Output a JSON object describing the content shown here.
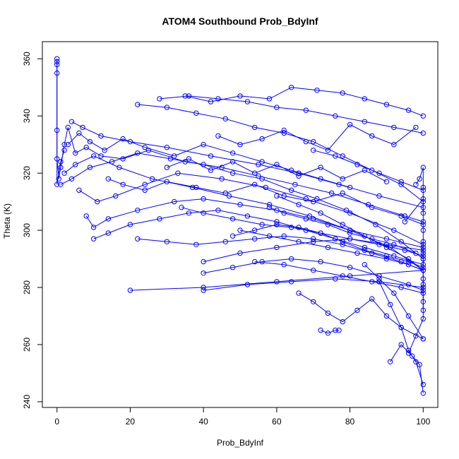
{
  "chart_data": {
    "type": "line",
    "title": "ATOM4 Southbound Prob_BdyInf",
    "xlabel": "Prob_BdyInf",
    "ylabel": "Theta (K)",
    "xlim": [
      -4,
      104
    ],
    "ylim": [
      238,
      366
    ],
    "xticks": [
      0,
      20,
      40,
      60,
      80,
      100
    ],
    "yticks": [
      240,
      260,
      280,
      300,
      320,
      340,
      360
    ],
    "grid": false,
    "legend": "none",
    "color": "#0000ff",
    "marker": "open-circle",
    "series": [
      {
        "x": [
          0,
          0,
          0,
          0,
          0.5,
          1,
          2,
          3,
          5,
          8,
          12,
          18,
          25,
          35,
          45,
          55,
          65,
          75,
          85,
          95,
          100
        ],
        "y": [
          359,
          355,
          335,
          325,
          318,
          322,
          330,
          336,
          327,
          329,
          326,
          325,
          328,
          324,
          322,
          319,
          316,
          313,
          309,
          305,
          303
        ]
      },
      {
        "x": [
          1,
          4,
          9,
          15,
          22,
          31,
          40,
          48,
          56,
          64,
          71,
          79,
          87,
          94,
          100
        ],
        "y": [
          316,
          318,
          322,
          324,
          327,
          325,
          323,
          320,
          318,
          314,
          311,
          307,
          302,
          296,
          290
        ]
      },
      {
        "x": [
          2,
          5,
          10,
          17,
          26,
          37,
          47,
          58,
          69,
          80,
          91,
          100
        ],
        "y": [
          320,
          323,
          326,
          322,
          318,
          315,
          312,
          309,
          305,
          300,
          294,
          286
        ]
      },
      {
        "x": [
          22,
          30,
          38,
          46,
          54,
          62,
          70,
          78,
          86,
          94,
          100
        ],
        "y": [
          344,
          343,
          341,
          339,
          336,
          334,
          331,
          326,
          321,
          316,
          310
        ]
      },
      {
        "x": [
          28,
          36,
          44,
          52,
          60,
          68,
          76,
          84,
          92,
          100
        ],
        "y": [
          346,
          347,
          346,
          345,
          343,
          342,
          340,
          338,
          336,
          334
        ]
      },
      {
        "x": [
          35,
          42,
          50,
          58,
          64,
          71,
          78,
          84,
          90,
          96,
          100
        ],
        "y": [
          347,
          345,
          347,
          346,
          350,
          349,
          348,
          346,
          344,
          342,
          340
        ]
      },
      {
        "x": [
          4,
          7,
          12,
          20,
          30,
          42,
          55,
          66,
          77,
          88,
          100
        ],
        "y": [
          338,
          336,
          333,
          331,
          329,
          326,
          323,
          320,
          316,
          312,
          308
        ]
      },
      {
        "x": [
          6,
          11,
          16,
          24,
          33,
          45,
          57,
          68,
          80,
          92,
          100
        ],
        "y": [
          314,
          310,
          312,
          316,
          320,
          318,
          315,
          311,
          306,
          300,
          295
        ]
      },
      {
        "x": [
          20,
          40,
          60,
          80,
          100
        ],
        "y": [
          279,
          280,
          282,
          284,
          286
        ]
      },
      {
        "x": [
          40,
          48,
          56,
          64,
          72,
          80,
          88,
          96,
          100
        ],
        "y": [
          285,
          287,
          289,
          290,
          289,
          287,
          284,
          281,
          279
        ]
      },
      {
        "x": [
          40,
          50,
          60,
          70,
          80,
          90,
          100
        ],
        "y": [
          289,
          292,
          294,
          296,
          297,
          295,
          293
        ]
      },
      {
        "x": [
          40,
          52,
          64,
          76,
          88,
          100
        ],
        "y": [
          279,
          281,
          282,
          283,
          282,
          280
        ]
      },
      {
        "x": [
          22,
          30,
          38,
          46,
          54,
          62,
          70,
          78,
          86,
          94,
          100
        ],
        "y": [
          297,
          296,
          295,
          296,
          297,
          298,
          297,
          295,
          292,
          289,
          286
        ]
      },
      {
        "x": [
          10,
          14,
          20,
          28,
          36,
          44,
          52,
          60,
          68,
          76,
          84,
          92,
          100
        ],
        "y": [
          297,
          299,
          302,
          304,
          306,
          307,
          305,
          303,
          300,
          297,
          294,
          291,
          288
        ]
      },
      {
        "x": [
          8,
          10,
          14,
          22,
          32,
          40,
          50,
          60,
          70,
          80,
          90,
          100
        ],
        "y": [
          305,
          301,
          304,
          307,
          310,
          311,
          309,
          307,
          304,
          300,
          297,
          294
        ]
      },
      {
        "x": [
          34,
          40,
          48,
          56,
          64,
          72,
          80,
          88,
          95,
          100
        ],
        "y": [
          308,
          306,
          304,
          302,
          301,
          299,
          297,
          295,
          293,
          291
        ]
      },
      {
        "x": [
          50,
          58,
          66,
          74,
          82,
          90,
          96,
          100
        ],
        "y": [
          300,
          298,
          296,
          294,
          292,
          290,
          288,
          286
        ]
      },
      {
        "x": [
          54,
          62,
          70,
          78,
          86,
          94,
          100
        ],
        "y": [
          289,
          288,
          286,
          284,
          282,
          280,
          278
        ]
      },
      {
        "x": [
          60,
          66,
          72,
          78,
          84,
          90,
          96,
          100
        ],
        "y": [
          312,
          309,
          306,
          302,
          298,
          294,
          290,
          286
        ]
      },
      {
        "x": [
          66,
          70,
          74,
          78,
          82,
          86,
          90,
          94,
          100
        ],
        "y": [
          278,
          275,
          271,
          268,
          272,
          276,
          270,
          266,
          262
        ]
      },
      {
        "x": [
          72,
          74,
          76,
          77
        ],
        "y": [
          265,
          264,
          265,
          265
        ]
      },
      {
        "x": [
          84,
          88,
          92,
          96,
          100
        ],
        "y": [
          288,
          283,
          278,
          270,
          262
        ]
      },
      {
        "x": [
          88,
          91,
          94,
          96,
          98,
          100
        ],
        "y": [
          282,
          274,
          266,
          258,
          254,
          246
        ]
      },
      {
        "x": [
          91,
          94,
          97,
          99,
          100
        ],
        "y": [
          254,
          260,
          256,
          253,
          243
        ]
      },
      {
        "x": [
          96,
          98,
          100,
          100,
          100,
          100,
          100
        ],
        "y": [
          257,
          263,
          269,
          275,
          281,
          290,
          296
        ]
      },
      {
        "x": [
          95,
          100,
          100,
          100,
          100,
          100
        ],
        "y": [
          303,
          311,
          300,
          292,
          283,
          272
        ]
      },
      {
        "x": [
          98,
          99,
          100,
          100,
          100
        ],
        "y": [
          316,
          318,
          322,
          315,
          306
        ]
      },
      {
        "x": [
          70,
          76,
          82,
          88,
          94,
          100
        ],
        "y": [
          328,
          326,
          323,
          320,
          317,
          314
        ]
      },
      {
        "x": [
          44,
          50,
          56,
          62,
          68,
          74,
          80,
          86,
          92,
          98
        ],
        "y": [
          333,
          330,
          332,
          335,
          331,
          328,
          337,
          333,
          330,
          336
        ]
      },
      {
        "x": [
          30,
          36,
          42,
          48,
          54,
          60,
          66,
          72,
          78,
          84,
          90
        ],
        "y": [
          322,
          325,
          321,
          324,
          320,
          323,
          319,
          322,
          318,
          321,
          317
        ]
      },
      {
        "x": [
          14,
          18,
          24,
          30,
          38,
          46,
          54,
          62,
          70,
          78,
          86,
          94,
          100
        ],
        "y": [
          318,
          316,
          314,
          317,
          315,
          313,
          316,
          312,
          310,
          313,
          308,
          305,
          302
        ]
      },
      {
        "x": [
          3,
          6,
          9,
          13,
          18,
          24,
          32,
          40,
          48,
          56,
          64,
          72,
          80
        ],
        "y": [
          330,
          334,
          331,
          328,
          332,
          329,
          326,
          330,
          327,
          324,
          321,
          318,
          315
        ]
      },
      {
        "x": [
          48,
          54,
          60,
          66,
          72,
          78,
          84,
          90,
          96,
          100
        ],
        "y": [
          298,
          300,
          302,
          301,
          299,
          296,
          293,
          291,
          289,
          287
        ]
      },
      {
        "x": [
          58,
          62,
          68,
          74,
          80,
          86,
          92,
          98
        ],
        "y": [
          308,
          306,
          304,
          302,
          299,
          297,
          295,
          292
        ]
      },
      {
        "x": [
          0,
          0,
          0,
          1,
          2
        ],
        "y": [
          360,
          358,
          316,
          324,
          328
        ]
      }
    ]
  }
}
